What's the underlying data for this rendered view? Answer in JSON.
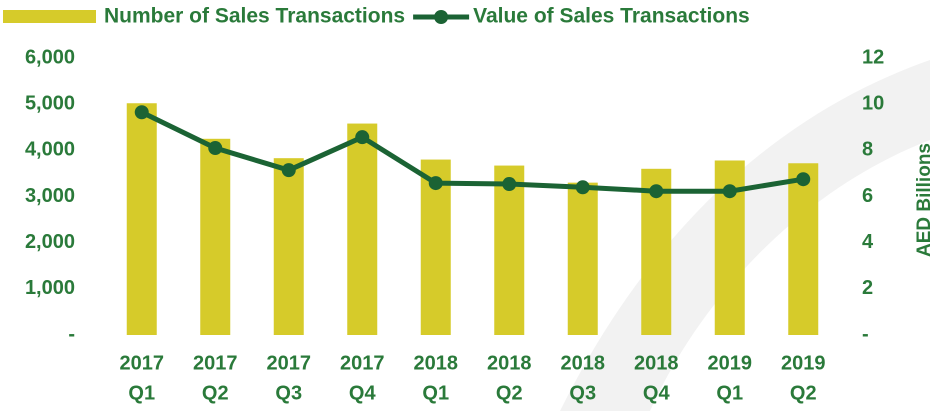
{
  "chart_data": {
    "type": "bar_line",
    "categories": [
      [
        "2017",
        "Q1"
      ],
      [
        "2017",
        "Q2"
      ],
      [
        "2017",
        "Q3"
      ],
      [
        "2017",
        "Q4"
      ],
      [
        "2018",
        "Q1"
      ],
      [
        "2018",
        "Q2"
      ],
      [
        "2018",
        "Q3"
      ],
      [
        "2018",
        "Q4"
      ],
      [
        "2019",
        "Q1"
      ],
      [
        "2019",
        "Q2"
      ]
    ],
    "series": [
      {
        "name": "Number of Sales Transactions",
        "type": "bar",
        "color": "#d6cb2a",
        "values": [
          5020,
          4250,
          3830,
          4580,
          3800,
          3670,
          3300,
          3600,
          3780,
          3720
        ]
      },
      {
        "name": "Value of Sales Transactions",
        "type": "line",
        "axis": "y2",
        "color": "#1b6334",
        "values": [
          9.65,
          8.1,
          7.14,
          8.57,
          6.58,
          6.54,
          6.4,
          6.23,
          6.23,
          6.75
        ]
      }
    ],
    "ylim": [
      0,
      6000
    ],
    "yticks": [
      {
        "value": 0,
        "label": "-"
      },
      {
        "value": 1000,
        "label": "1,000"
      },
      {
        "value": 2000,
        "label": "2,000"
      },
      {
        "value": 3000,
        "label": "3,000"
      },
      {
        "value": 4000,
        "label": "4,000"
      },
      {
        "value": 5000,
        "label": "5,000"
      },
      {
        "value": 6000,
        "label": "6,000"
      }
    ],
    "y2lim": [
      0,
      12
    ],
    "y2ticks": [
      {
        "value": 0,
        "label": "-"
      },
      2,
      4,
      6,
      8,
      10,
      12
    ],
    "y2label": "AED Billions",
    "legend": "top"
  }
}
